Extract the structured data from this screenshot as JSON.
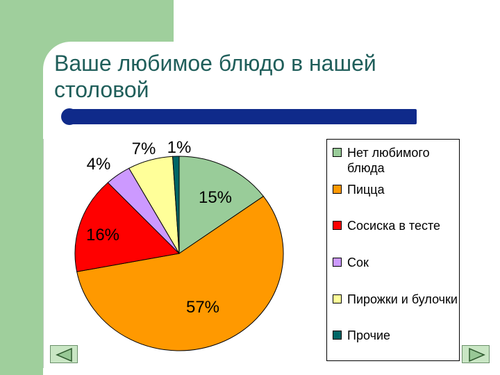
{
  "title": "Ваше любимое блюдо в нашей столовой",
  "chart_data": {
    "type": "pie",
    "title": "Ваше любимое блюдо в нашей столовой",
    "slices": [
      {
        "label": "Нет любимого блюда",
        "value": 15,
        "display": "15%",
        "color": "#99cc99"
      },
      {
        "label": "Пицца",
        "value": 57,
        "display": "57%",
        "color": "#ff9900"
      },
      {
        "label": "Сосиска в тесте",
        "value": 16,
        "display": "16%",
        "color": "#ff0000"
      },
      {
        "label": "Сок",
        "value": 4,
        "display": "4%",
        "color": "#cc99ff"
      },
      {
        "label": "Пирожки и булочки",
        "value": 7,
        "display": "7%",
        "color": "#ffff99"
      },
      {
        "label": "Прочие",
        "value": 1,
        "display": "1%",
        "color": "#006666"
      }
    ],
    "legend_position": "right"
  },
  "nav": {
    "prev_icon": "triangle-left-icon",
    "next_icon": "triangle-right-icon"
  }
}
